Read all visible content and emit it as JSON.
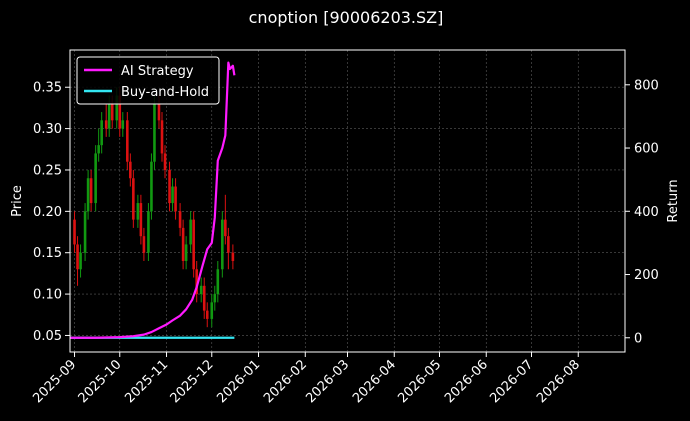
{
  "chart_data": {
    "type": "line",
    "title": "cnoption [90006203.SZ]",
    "xlabel": "",
    "ylabel_left": "Price",
    "ylabel_right": "Return",
    "x_range": [
      "2025-08-29",
      "2026-09-01"
    ],
    "ylim_left": [
      0.03,
      0.395
    ],
    "ylim_right": [
      -45,
      910
    ],
    "grid": true,
    "legend_position": "upper-left",
    "x_tick_labels": [
      "2025-09",
      "2025-10",
      "2025-11",
      "2025-12",
      "2026-01",
      "2026-02",
      "2026-03",
      "2026-04",
      "2026-05",
      "2026-06",
      "2026-07",
      "2026-08"
    ],
    "x_tick_dates": [
      "2025-09-01",
      "2025-10-01",
      "2025-11-01",
      "2025-12-01",
      "2026-01-01",
      "2026-02-01",
      "2026-03-01",
      "2026-04-01",
      "2026-05-01",
      "2026-06-01",
      "2026-07-01",
      "2026-08-01"
    ],
    "y_left_ticks": [
      "0.05",
      "0.10",
      "0.15",
      "0.20",
      "0.25",
      "0.30",
      "0.35"
    ],
    "y_left_tick_values": [
      0.05,
      0.1,
      0.15,
      0.2,
      0.25,
      0.3,
      0.35
    ],
    "y_right_ticks": [
      "0",
      "200",
      "400",
      "600",
      "800"
    ],
    "y_right_tick_values": [
      0,
      200,
      400,
      600,
      800
    ],
    "candles": {
      "dates": [
        "2025-09-01",
        "2025-09-03",
        "2025-09-05",
        "2025-09-08",
        "2025-09-10",
        "2025-09-12",
        "2025-09-15",
        "2025-09-17",
        "2025-09-19",
        "2025-09-22",
        "2025-09-24",
        "2025-09-26",
        "2025-09-29",
        "2025-10-01",
        "2025-10-03",
        "2025-10-06",
        "2025-10-08",
        "2025-10-10",
        "2025-10-13",
        "2025-10-15",
        "2025-10-17",
        "2025-10-20",
        "2025-10-22",
        "2025-10-24",
        "2025-10-27",
        "2025-10-29",
        "2025-10-31",
        "2025-11-03",
        "2025-11-05",
        "2025-11-07",
        "2025-11-10",
        "2025-11-12",
        "2025-11-14",
        "2025-11-17",
        "2025-11-19",
        "2025-11-21",
        "2025-11-24",
        "2025-11-26",
        "2025-11-28",
        "2025-12-01",
        "2025-12-03",
        "2025-12-05",
        "2025-12-08",
        "2025-12-10",
        "2025-12-12",
        "2025-12-15"
      ],
      "open": [
        0.19,
        0.16,
        0.13,
        0.15,
        0.2,
        0.24,
        0.21,
        0.27,
        0.28,
        0.31,
        0.3,
        0.33,
        0.31,
        0.34,
        0.3,
        0.31,
        0.26,
        0.24,
        0.19,
        0.21,
        0.17,
        0.15,
        0.2,
        0.26,
        0.33,
        0.31,
        0.27,
        0.25,
        0.21,
        0.23,
        0.2,
        0.18,
        0.14,
        0.16,
        0.19,
        0.13,
        0.1,
        0.11,
        0.08,
        0.07,
        0.09,
        0.1,
        0.13,
        0.19,
        0.17,
        0.15
      ],
      "close": [
        0.16,
        0.13,
        0.15,
        0.2,
        0.24,
        0.21,
        0.27,
        0.28,
        0.31,
        0.3,
        0.33,
        0.31,
        0.34,
        0.3,
        0.31,
        0.26,
        0.24,
        0.19,
        0.21,
        0.17,
        0.15,
        0.2,
        0.26,
        0.33,
        0.31,
        0.27,
        0.25,
        0.21,
        0.23,
        0.2,
        0.18,
        0.14,
        0.16,
        0.19,
        0.13,
        0.1,
        0.11,
        0.08,
        0.07,
        0.09,
        0.1,
        0.13,
        0.19,
        0.17,
        0.15,
        0.14
      ],
      "high": [
        0.2,
        0.17,
        0.16,
        0.21,
        0.25,
        0.25,
        0.28,
        0.3,
        0.32,
        0.33,
        0.34,
        0.34,
        0.35,
        0.35,
        0.32,
        0.32,
        0.27,
        0.25,
        0.22,
        0.22,
        0.18,
        0.21,
        0.27,
        0.34,
        0.34,
        0.32,
        0.28,
        0.26,
        0.24,
        0.24,
        0.21,
        0.19,
        0.17,
        0.2,
        0.2,
        0.14,
        0.12,
        0.12,
        0.09,
        0.1,
        0.11,
        0.14,
        0.2,
        0.22,
        0.18,
        0.16
      ],
      "low": [
        0.15,
        0.11,
        0.12,
        0.14,
        0.19,
        0.2,
        0.2,
        0.26,
        0.27,
        0.29,
        0.29,
        0.3,
        0.3,
        0.29,
        0.29,
        0.25,
        0.23,
        0.18,
        0.18,
        0.16,
        0.14,
        0.14,
        0.19,
        0.25,
        0.3,
        0.26,
        0.24,
        0.2,
        0.2,
        0.19,
        0.17,
        0.13,
        0.13,
        0.15,
        0.12,
        0.09,
        0.09,
        0.07,
        0.06,
        0.06,
        0.08,
        0.09,
        0.12,
        0.16,
        0.13,
        0.13
      ]
    },
    "series": [
      {
        "name": "AI Strategy",
        "color": "#ff1aff",
        "axis": "right",
        "x": [
          "2025-08-29",
          "2025-09-15",
          "2025-10-01",
          "2025-10-10",
          "2025-10-17",
          "2025-10-22",
          "2025-10-27",
          "2025-11-01",
          "2025-11-05",
          "2025-11-10",
          "2025-11-14",
          "2025-11-18",
          "2025-11-21",
          "2025-11-25",
          "2025-11-28",
          "2025-12-01",
          "2025-12-03",
          "2025-12-05",
          "2025-12-08",
          "2025-12-10",
          "2025-12-12",
          "2025-12-13",
          "2025-12-15",
          "2025-12-16"
        ],
        "y": [
          0,
          0,
          2,
          5,
          10,
          18,
          30,
          42,
          55,
          70,
          90,
          120,
          160,
          230,
          280,
          300,
          380,
          560,
          600,
          640,
          870,
          850,
          860,
          830
        ]
      },
      {
        "name": "Buy-and-Hold",
        "color": "#33e6f2",
        "axis": "right",
        "x": [
          "2025-08-29",
          "2025-12-16"
        ],
        "y": [
          0,
          0
        ]
      }
    ],
    "colors": {
      "up": "#119911",
      "down": "#dd1111",
      "frame": "#ffffff",
      "grid": "#5a5a5a"
    }
  }
}
